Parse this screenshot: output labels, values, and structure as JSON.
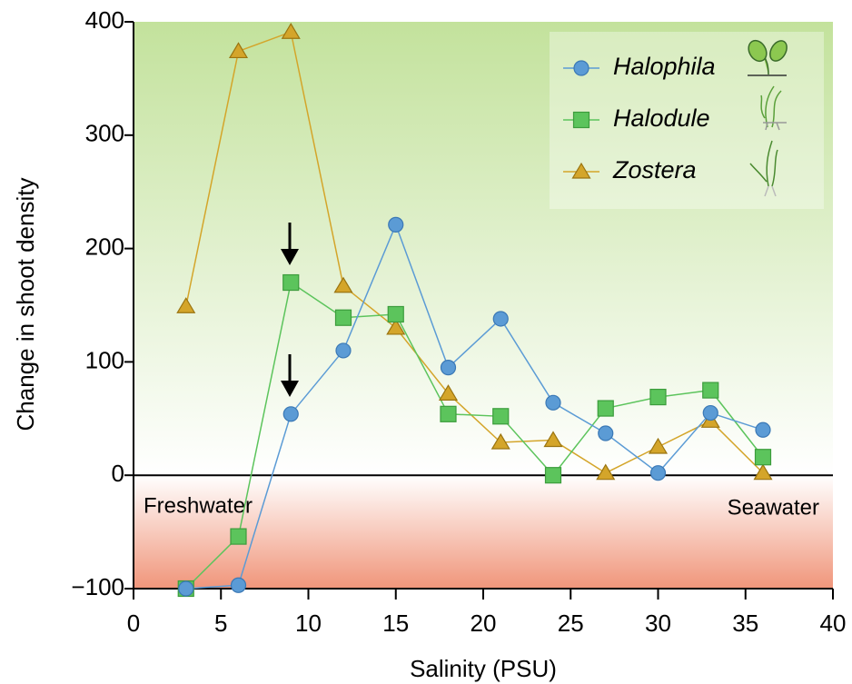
{
  "chart_data": {
    "type": "line",
    "x_label": "Salinity (PSU)",
    "y_label": "Change in shoot density",
    "xlim": [
      0,
      40
    ],
    "xticks": [
      0,
      5,
      10,
      15,
      20,
      25,
      30,
      35,
      40
    ],
    "ylim": [
      -100,
      400
    ],
    "yticks": [
      {
        "value": -100,
        "label": "−100"
      },
      0,
      100,
      200,
      300,
      400
    ],
    "annotations": [
      "Freshwater",
      "Seawater"
    ],
    "x": [
      3,
      6,
      9,
      12,
      15,
      18,
      21,
      24,
      27,
      30,
      33,
      36
    ],
    "series": [
      {
        "name": "Halophila",
        "color": "#5b9bd5",
        "marker": "circle",
        "values": [
          -100,
          -97,
          54,
          110,
          221,
          95,
          138,
          64,
          37,
          2,
          55,
          40
        ]
      },
      {
        "name": "Halodule",
        "color": "#5cc45c",
        "marker": "square",
        "values": [
          -100,
          -54,
          170,
          139,
          142,
          54,
          52,
          0,
          59,
          69,
          75,
          16
        ]
      },
      {
        "name": "Zostera",
        "color": "#d4a52a",
        "marker": "triangle",
        "values": [
          149,
          374,
          391,
          167,
          130,
          72,
          29,
          31,
          2,
          25,
          48,
          2
        ]
      }
    ]
  }
}
